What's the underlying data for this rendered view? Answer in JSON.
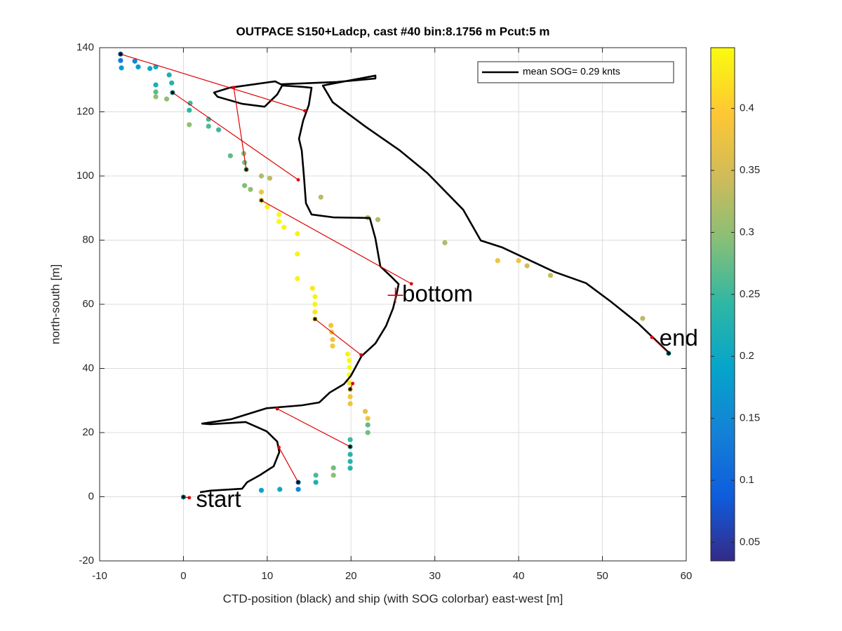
{
  "chart_data": {
    "type": "scatter",
    "title": "OUTPACE S150+Ladcp, cast #40 bin:8.1756 m  Pcut:5 m",
    "xlabel": "CTD-position (black) and ship (with SOG colorbar) east-west [m]",
    "ylabel": "north-south [m]",
    "xlim": [
      -10,
      60
    ],
    "xticks": [
      -10,
      0,
      10,
      20,
      30,
      40,
      50,
      60
    ],
    "ylim": [
      -20,
      140
    ],
    "yticks": [
      -20,
      0,
      20,
      40,
      60,
      80,
      100,
      120,
      140
    ],
    "grid": true,
    "legend": "top-right",
    "series": [
      {
        "name": "mean SOG=  0.29 knts",
        "color": "#000000",
        "x": [
          1.98,
          3.23,
          7.0,
          7.59,
          9.1,
          10.77,
          11.44,
          11.19,
          9.93,
          7.42,
          3.23,
          2.23,
          5.75,
          9.93,
          14.12,
          16.21,
          17.47,
          19.15,
          19.98,
          20.4,
          21.24,
          22.91,
          24.17,
          25.01,
          25.43,
          25.68,
          24.84,
          23.5,
          22.91,
          22.24,
          17.89,
          15.29,
          14.62,
          14.37,
          14.12,
          13.79,
          14.29,
          14.96,
          15.29,
          14.12,
          11.78,
          11.19,
          9.68,
          7.0,
          4.07,
          3.65,
          5.49,
          10.94,
          11.61,
          18.31,
          22.91,
          22.91,
          16.63,
          17.81,
          21.66,
          25.85,
          29.11,
          33.38,
          35.48,
          38.07,
          44.27,
          48.04,
          50.97,
          54.32,
          58.09
        ],
        "y": [
          1.4,
          1.9,
          2.5,
          4.5,
          6.7,
          9.5,
          13.9,
          17.2,
          20.4,
          23.3,
          22.6,
          22.8,
          24.2,
          27.6,
          28.5,
          29.4,
          32.5,
          35.1,
          37.7,
          39.7,
          43.8,
          47.8,
          53.2,
          58.7,
          63.1,
          66.3,
          68.5,
          71.8,
          80.5,
          86.9,
          87.1,
          88.0,
          91.5,
          100.2,
          107.9,
          111.6,
          117.3,
          122.1,
          127.5,
          127.8,
          128.2,
          125.4,
          121.6,
          122.5,
          124.7,
          126.0,
          127.5,
          129.5,
          128.6,
          129.3,
          130.4,
          131.3,
          128.2,
          123.0,
          115.5,
          107.9,
          100.9,
          89.5,
          79.9,
          77.7,
          70.1,
          66.6,
          60.9,
          53.9,
          44.5
        ]
      }
    ],
    "points": {
      "x": [
        -7.5,
        -7.5,
        -7.4,
        -5.8,
        -5.4,
        -4,
        -3.3,
        -3.3,
        -3.3,
        -3.3,
        -2,
        -1.7,
        -1.4,
        -1.3,
        0.8,
        0.7,
        0.7,
        3,
        3,
        4.2,
        5.6,
        7.2,
        7.3,
        7.5,
        9.3,
        10.3,
        7.3,
        8,
        9.3,
        9.3,
        16.4,
        10,
        11.4,
        11.4,
        12,
        13.6,
        13.6,
        13.6,
        15.4,
        15.7,
        15.7,
        15.7,
        15.7,
        17.6,
        17.7,
        17.8,
        17.8,
        19.6,
        19.8,
        19.8,
        19.8,
        19.8,
        19.9,
        19.9,
        19.9,
        21.7,
        22,
        22,
        22,
        19.9,
        19.9,
        19.9,
        19.9,
        19.9,
        17.9,
        17.9,
        15.8,
        15.8,
        13.7,
        13.7,
        11.5,
        9.3,
        0,
        31.2,
        37.5,
        40,
        41,
        43.8,
        54.8,
        57.9,
        23.2,
        22
      ],
      "y": [
        138,
        136,
        133.7,
        135.8,
        134,
        133.5,
        134,
        128.4,
        126.2,
        124.7,
        124,
        131.5,
        129,
        126,
        122.7,
        120.5,
        116,
        117.7,
        115.5,
        114.4,
        106.3,
        107,
        104.2,
        102,
        100,
        99.3,
        97,
        95.8,
        95,
        92.4,
        93.4,
        90.4,
        88,
        85.8,
        84,
        82,
        75.7,
        68,
        65,
        62.4,
        60,
        57.6,
        55.4,
        53.4,
        51.3,
        49,
        47,
        44.5,
        42.5,
        40.3,
        38,
        35.5,
        33.5,
        31.2,
        29,
        26.6,
        24.4,
        22.4,
        20,
        17.8,
        15.6,
        13.2,
        11,
        8.9,
        9,
        6.7,
        6.7,
        4.5,
        4.5,
        2.3,
        2.3,
        2,
        -0.1,
        79.2,
        73.6,
        73.6,
        72,
        69,
        55.6,
        44.7,
        86.4,
        87
      ],
      "values": [
        0.12,
        0.13,
        0.18,
        0.15,
        0.18,
        0.2,
        0.2,
        0.22,
        0.27,
        0.3,
        0.3,
        0.22,
        0.23,
        0.22,
        0.25,
        0.24,
        0.3,
        0.25,
        0.26,
        0.25,
        0.27,
        0.3,
        0.28,
        0.3,
        0.32,
        0.33,
        0.29,
        0.3,
        0.38,
        0.43,
        0.33,
        0.44,
        0.45,
        0.45,
        0.44,
        0.44,
        0.44,
        0.44,
        0.43,
        0.44,
        0.44,
        0.43,
        0.43,
        0.38,
        0.38,
        0.38,
        0.39,
        0.44,
        0.45,
        0.45,
        0.45,
        0.43,
        0.38,
        0.38,
        0.38,
        0.37,
        0.38,
        0.27,
        0.28,
        0.25,
        0.25,
        0.23,
        0.23,
        0.23,
        0.28,
        0.3,
        0.26,
        0.22,
        0.15,
        0.15,
        0.2,
        0.19,
        0.22,
        0.32,
        0.38,
        0.38,
        0.35,
        0.34,
        0.33,
        0.22,
        0.32,
        0.32
      ]
    },
    "links": [
      {
        "x": [
          -7.5,
          14.5
        ],
        "y": [
          138,
          120.3
        ]
      },
      {
        "x": [
          -1.3,
          13.7
        ],
        "y": [
          126,
          98.8
        ]
      },
      {
        "x": [
          7.5,
          6
        ],
        "y": [
          102,
          127.6
        ]
      },
      {
        "x": [
          9.3,
          27.2
        ],
        "y": [
          92.4,
          66.4
        ]
      },
      {
        "x": [
          15.7,
          21.2
        ],
        "y": [
          55.4,
          44.2
        ]
      },
      {
        "x": [
          19.9,
          20.2
        ],
        "y": [
          33.5,
          35.3
        ]
      },
      {
        "x": [
          19.9,
          11.2
        ],
        "y": [
          15.6,
          27.4
        ]
      },
      {
        "x": [
          13.7,
          11.4
        ],
        "y": [
          4.5,
          15.4
        ]
      },
      {
        "x": [
          0,
          0.7
        ],
        "y": [
          -0.1,
          -0.3
        ]
      },
      {
        "x": [
          57.9,
          55.9
        ],
        "y": [
          44.7,
          49.7
        ]
      }
    ],
    "annotations": [
      {
        "text": "start",
        "x": 1.5,
        "y": -1.3
      },
      {
        "text": "bottom",
        "x": 26.1,
        "y": 62.8
      },
      {
        "text": "end",
        "x": 56.8,
        "y": 49
      }
    ],
    "bottom_marker": {
      "x": 25.3,
      "y": 62.8
    },
    "clim": [
      0.035,
      0.449
    ],
    "cticks": [
      0.05,
      0.1,
      0.15,
      0.2,
      0.25,
      0.3,
      0.35,
      0.4
    ],
    "colormap": [
      "#352a87",
      "#0f5cdd",
      "#1481d6",
      "#06a4ca",
      "#2eb7a4",
      "#87bf77",
      "#d1bb59",
      "#fec832",
      "#f9fb0e"
    ]
  }
}
